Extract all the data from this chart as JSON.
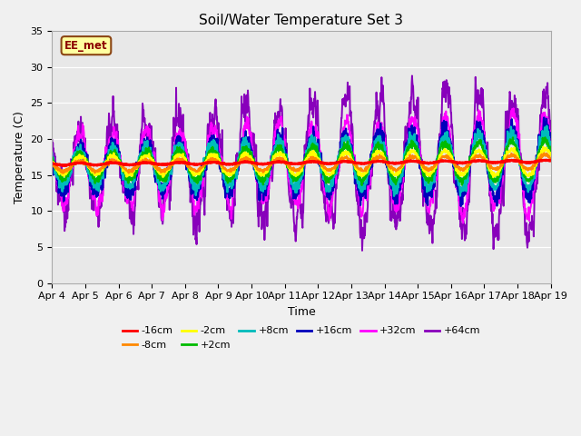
{
  "title": "Soil/Water Temperature Set 3",
  "xlabel": "Time",
  "ylabel": "Temperature (C)",
  "ylim": [
    0,
    35
  ],
  "x_tick_labels": [
    "Apr 4",
    "Apr 5",
    "Apr 6",
    "Apr 7",
    "Apr 8",
    "Apr 9",
    "Apr 10",
    "Apr 11",
    "Apr 12",
    "Apr 13",
    "Apr 14",
    "Apr 15",
    "Apr 16",
    "Apr 17",
    "Apr 18",
    "Apr 19"
  ],
  "label_box_text": "EE_met",
  "series_names": [
    "-16cm",
    "-8cm",
    "-2cm",
    "+2cm",
    "+8cm",
    "+16cm",
    "+32cm",
    "+64cm"
  ],
  "series_colors": [
    "#ff0000",
    "#ff8800",
    "#ffff00",
    "#00bb00",
    "#00bbbb",
    "#0000bb",
    "#ff00ff",
    "#8800bb"
  ],
  "series_lw": [
    2.2,
    1.6,
    1.6,
    1.6,
    1.6,
    1.6,
    1.4,
    1.4
  ],
  "bg_color": "#dcdcdc",
  "fig_bg": "#f0f0f0",
  "plot_bg": "#e8e8e8"
}
